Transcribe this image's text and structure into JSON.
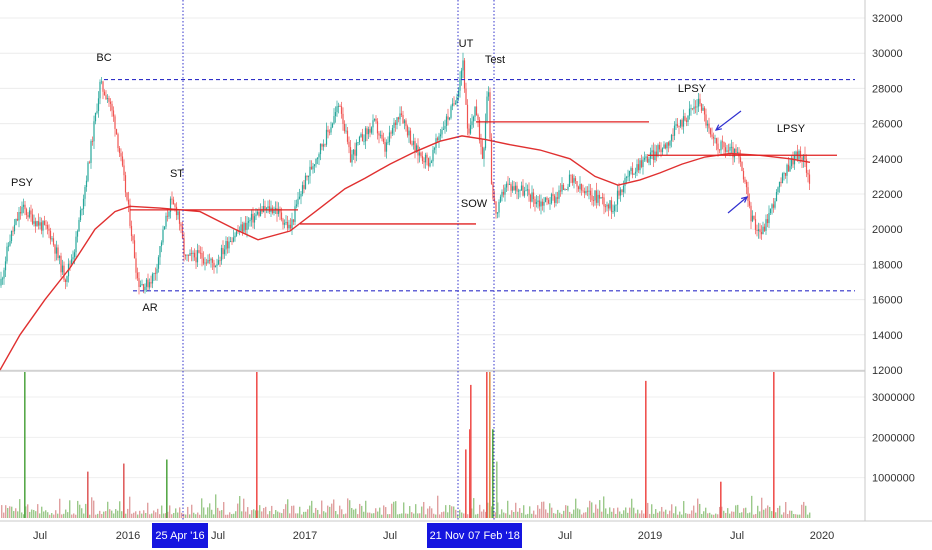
{
  "chart_data": {
    "type": "candlestick",
    "price_axis": {
      "ticks": [
        "32000",
        "30000",
        "28000",
        "26000",
        "24000",
        "22000",
        "20000",
        "18000",
        "16000",
        "14000",
        "12000"
      ],
      "ylim": [
        12000,
        32500
      ]
    },
    "volume_axis": {
      "ticks": [
        "3000000",
        "2000000",
        "1000000"
      ],
      "ylim": [
        0,
        3700000
      ]
    },
    "x_axis": {
      "ticks": [
        "Jul",
        "2016",
        "Jul",
        "2017",
        "Jul",
        "Jul",
        "2019",
        "Jul",
        "2020"
      ]
    },
    "highlight_dates": [
      "25 Apr '16",
      "21 Nov",
      "07 Feb '18"
    ],
    "wyckoff_labels": [
      "PSY",
      "BC",
      "ST",
      "AR",
      "UT",
      "Test",
      "SOW",
      "LPSY",
      "LPSY"
    ],
    "range_levels": {
      "resistance": 28500,
      "support": 16500
    },
    "colors": {
      "up": "#26a69a",
      "down": "#ef5350",
      "ma": "#e03030",
      "level": "#e02020",
      "range": "#3030c8",
      "vline": "#3333cc",
      "datebox": "#1515e0",
      "vol_up": "#9bc98a",
      "vol_down": "#e0a0a0"
    }
  }
}
